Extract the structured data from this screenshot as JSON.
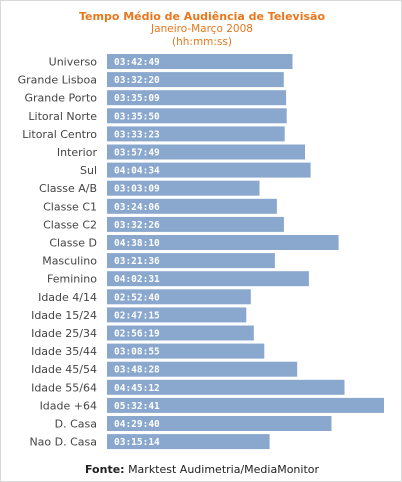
{
  "header": {
    "title": "Tempo Médio de Audiência  de Televisão",
    "period": "Janeiro-Março 2008",
    "unit": "(hh:mm:ss)"
  },
  "footer": {
    "source_label": "Fonte:",
    "source_text": "Marktest Audimetria/MediaMonitor"
  },
  "colors": {
    "title": "#e8771c",
    "bar": "#8aa8cd",
    "value_text": "#ffffff",
    "label_text": "#444444"
  },
  "chart_data": {
    "type": "bar",
    "orientation": "horizontal",
    "title": "Tempo Médio de Audiência  de Televisão",
    "subtitle": "Janeiro-Março 2008 (hh:mm:ss)",
    "xlabel": "",
    "ylabel": "",
    "grid": false,
    "legend": "none",
    "categories": [
      "Universo",
      "Grande Lisboa",
      "Grande Porto",
      "Litoral Norte",
      "Litoral Centro",
      "Interior",
      "Sul",
      "Classe A/B",
      "Classe C1",
      "Classe C2",
      "Classe D",
      "Masculino",
      "Feminino",
      "Idade 4/14",
      "Idade 15/24",
      "Idade 25/34",
      "Idade 35/44",
      "Idade 45/54",
      "Idade 55/64",
      "Idade +64",
      "D. Casa",
      "Nao D. Casa"
    ],
    "value_labels": [
      "03:42:49",
      "03:32:20",
      "03:35:09",
      "03:35:50",
      "03:33:23",
      "03:57:49",
      "04:04:34",
      "03:03:09",
      "03:24:06",
      "03:32:26",
      "04:38:10",
      "03:21:36",
      "04:02:31",
      "02:52:40",
      "02:47:15",
      "02:56:19",
      "03:08:55",
      "03:48:28",
      "04:45:12",
      "05:32:41",
      "04:29:40",
      "03:15:14"
    ],
    "values_seconds": [
      13369,
      12740,
      12909,
      12950,
      12803,
      14269,
      14674,
      10989,
      12246,
      12746,
      16690,
      12096,
      14551,
      10360,
      10035,
      10579,
      11335,
      13708,
      17112,
      19961,
      16180,
      11714
    ]
  }
}
